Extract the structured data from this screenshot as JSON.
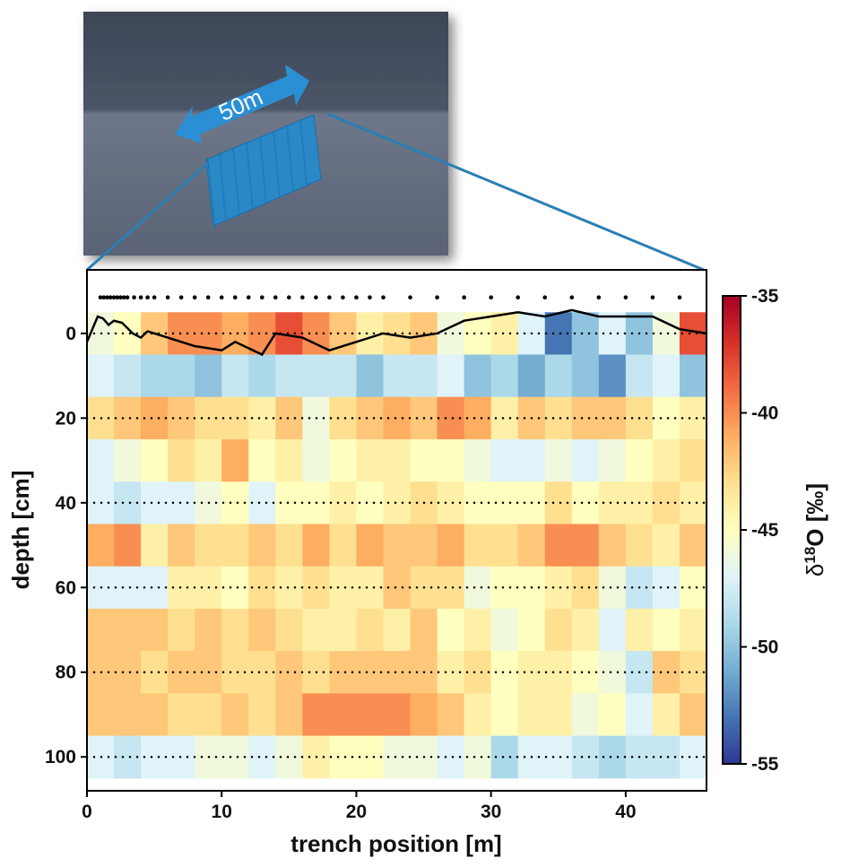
{
  "chart_data": {
    "type": "heatmap",
    "inset_label": "50m",
    "xlabel": "trench position [m]",
    "ylabel": "depth [cm]",
    "xlim": [
      0,
      46
    ],
    "ylim": [
      108,
      -15
    ],
    "xticks": [
      0,
      10,
      20,
      30,
      40
    ],
    "yticks": [
      0,
      20,
      40,
      60,
      80,
      100
    ],
    "grid": true,
    "x_bins": [
      0,
      2,
      4,
      6,
      8,
      10,
      12,
      14,
      16,
      18,
      20,
      22,
      24,
      26,
      28,
      30,
      32,
      34,
      36,
      38,
      40,
      42,
      44,
      46
    ],
    "depth_bins": [
      -5,
      5,
      15,
      25,
      35,
      45,
      55,
      65,
      75,
      85,
      95,
      105
    ],
    "values": [
      [
        -46,
        -45,
        -42,
        -40,
        -40,
        -41,
        -40,
        -38,
        -40,
        -42,
        -44,
        -43,
        -42,
        -46,
        -45,
        -44,
        -47,
        -53,
        -50,
        -47,
        -50,
        -46,
        -38
      ],
      [
        -47,
        -48,
        -49,
        -49,
        -50,
        -48,
        -49,
        -48,
        -48,
        -48,
        -50,
        -48,
        -48,
        -47,
        -50,
        -49,
        -51,
        -49,
        -50,
        -52,
        -48,
        -47,
        -50
      ],
      [
        -43,
        -42,
        -41,
        -42,
        -43,
        -43,
        -44,
        -42,
        -46,
        -43,
        -42,
        -41,
        -42,
        -40,
        -41,
        -44,
        -42,
        -43,
        -42,
        -42,
        -43,
        -45,
        -44
      ],
      [
        -47,
        -46,
        -45,
        -43,
        -44,
        -41,
        -45,
        -44,
        -46,
        -45,
        -44,
        -44,
        -45,
        -45,
        -46,
        -47,
        -47,
        -46,
        -47,
        -46,
        -45,
        -44,
        -43
      ],
      [
        -47,
        -48,
        -47,
        -47,
        -46,
        -45,
        -47,
        -45,
        -45,
        -44,
        -45,
        -44,
        -43,
        -44,
        -45,
        -45,
        -45,
        -43,
        -45,
        -44,
        -44,
        -43,
        -44
      ],
      [
        -41,
        -40,
        -44,
        -42,
        -43,
        -43,
        -42,
        -43,
        -41,
        -43,
        -41,
        -42,
        -42,
        -41,
        -43,
        -43,
        -42,
        -40,
        -40,
        -42,
        -43,
        -44,
        -42
      ],
      [
        -47,
        -47,
        -47,
        -44,
        -44,
        -45,
        -43,
        -44,
        -43,
        -44,
        -44,
        -42,
        -43,
        -43,
        -46,
        -45,
        -45,
        -44,
        -43,
        -46,
        -48,
        -47,
        -45
      ],
      [
        -42,
        -42,
        -42,
        -43,
        -42,
        -43,
        -42,
        -43,
        -44,
        -44,
        -43,
        -44,
        -42,
        -45,
        -44,
        -46,
        -45,
        -43,
        -44,
        -47,
        -44,
        -45,
        -44
      ],
      [
        -42,
        -42,
        -43,
        -42,
        -42,
        -43,
        -43,
        -42,
        -43,
        -42,
        -42,
        -42,
        -42,
        -44,
        -43,
        -45,
        -44,
        -44,
        -45,
        -46,
        -48,
        -42,
        -43
      ],
      [
        -42,
        -42,
        -42,
        -43,
        -43,
        -42,
        -43,
        -42,
        -40,
        -40,
        -40,
        -40,
        -41,
        -42,
        -44,
        -45,
        -44,
        -44,
        -46,
        -45,
        -47,
        -44,
        -42
      ],
      [
        -47,
        -48,
        -47,
        -47,
        -46,
        -46,
        -47,
        -46,
        -44,
        -45,
        -45,
        -46,
        -46,
        -47,
        -46,
        -49,
        -47,
        -47,
        -48,
        -49,
        -48,
        -48,
        -47
      ]
    ],
    "surface": {
      "x": [
        0,
        0.8,
        1.2,
        1.6,
        2,
        2.6,
        3.4,
        4,
        4.5,
        6,
        8,
        10,
        11,
        12,
        13,
        14,
        16,
        18,
        20,
        22,
        24,
        26,
        28,
        30,
        32,
        34,
        36,
        38,
        40,
        42,
        44,
        46
      ],
      "depth": [
        2,
        -4,
        -3.5,
        -2,
        -3,
        -2.5,
        0,
        1,
        -0.5,
        1,
        3,
        4,
        2,
        3.5,
        5,
        0,
        1,
        4,
        2,
        0,
        1,
        0,
        -3,
        -4,
        -5,
        -4,
        -5.5,
        -4,
        -4,
        -4,
        -1,
        0
      ],
      "color": "#000000"
    },
    "profile_positions": [
      1,
      1.25,
      1.5,
      1.75,
      2,
      2.25,
      2.5,
      2.75,
      3,
      3.5,
      4,
      4.5,
      5,
      6,
      7,
      8,
      9,
      10,
      11,
      12,
      13,
      14,
      15,
      16,
      17,
      18,
      19,
      20,
      21,
      22,
      24,
      26,
      28,
      30,
      32,
      34,
      36,
      38,
      40,
      42,
      44
    ],
    "colorbar": {
      "lim": [
        -55,
        -35
      ],
      "ticks": [
        -35,
        -40,
        -45,
        -50,
        -55
      ],
      "colors": [
        "#313695",
        "#4575b4",
        "#74add1",
        "#abd9e9",
        "#e0f3f8",
        "#ffffbf",
        "#fee090",
        "#fdae61",
        "#f46d43",
        "#d73027",
        "#a50026"
      ],
      "label_prefix": "δ",
      "label_superscript": "18",
      "label_suffix": "O [‰]"
    }
  }
}
